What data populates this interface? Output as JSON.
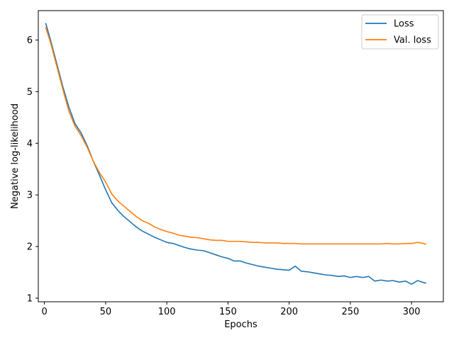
{
  "chart_data": {
    "type": "line",
    "title": "",
    "xlabel": "Epochs",
    "ylabel": "Negative log-likelihood",
    "xlim": [
      -5,
      326
    ],
    "ylim": [
      0.93,
      6.57
    ],
    "x_ticks": [
      0,
      50,
      100,
      150,
      200,
      250,
      300
    ],
    "y_ticks": [
      1,
      2,
      3,
      4,
      5,
      6
    ],
    "grid": false,
    "legend_position": "top-right",
    "series": [
      {
        "name": "Loss",
        "color": "#1f77b4",
        "points": [
          [
            1,
            6.33
          ],
          [
            5,
            6.0
          ],
          [
            10,
            5.55
          ],
          [
            15,
            5.1
          ],
          [
            20,
            4.7
          ],
          [
            25,
            4.38
          ],
          [
            30,
            4.2
          ],
          [
            35,
            3.95
          ],
          [
            40,
            3.65
          ],
          [
            45,
            3.38
          ],
          [
            50,
            3.1
          ],
          [
            55,
            2.85
          ],
          [
            60,
            2.7
          ],
          [
            65,
            2.58
          ],
          [
            70,
            2.48
          ],
          [
            75,
            2.38
          ],
          [
            80,
            2.3
          ],
          [
            85,
            2.24
          ],
          [
            90,
            2.18
          ],
          [
            95,
            2.13
          ],
          [
            100,
            2.08
          ],
          [
            105,
            2.06
          ],
          [
            110,
            2.02
          ],
          [
            115,
            1.98
          ],
          [
            120,
            1.95
          ],
          [
            125,
            1.93
          ],
          [
            130,
            1.92
          ],
          [
            135,
            1.88
          ],
          [
            140,
            1.84
          ],
          [
            145,
            1.8
          ],
          [
            150,
            1.77
          ],
          [
            155,
            1.72
          ],
          [
            160,
            1.72
          ],
          [
            165,
            1.68
          ],
          [
            170,
            1.65
          ],
          [
            175,
            1.62
          ],
          [
            180,
            1.6
          ],
          [
            185,
            1.58
          ],
          [
            190,
            1.56
          ],
          [
            195,
            1.55
          ],
          [
            200,
            1.54
          ],
          [
            205,
            1.62
          ],
          [
            210,
            1.52
          ],
          [
            215,
            1.51
          ],
          [
            220,
            1.49
          ],
          [
            225,
            1.47
          ],
          [
            230,
            1.45
          ],
          [
            235,
            1.44
          ],
          [
            240,
            1.42
          ],
          [
            245,
            1.43
          ],
          [
            250,
            1.4
          ],
          [
            255,
            1.42
          ],
          [
            260,
            1.4
          ],
          [
            265,
            1.42
          ],
          [
            270,
            1.33
          ],
          [
            275,
            1.35
          ],
          [
            280,
            1.33
          ],
          [
            285,
            1.34
          ],
          [
            290,
            1.31
          ],
          [
            295,
            1.33
          ],
          [
            300,
            1.27
          ],
          [
            305,
            1.34
          ],
          [
            310,
            1.3
          ],
          [
            312,
            1.29
          ]
        ]
      },
      {
        "name": "Val. loss",
        "color": "#ff7f0e",
        "points": [
          [
            1,
            6.25
          ],
          [
            5,
            5.95
          ],
          [
            10,
            5.5
          ],
          [
            15,
            5.05
          ],
          [
            20,
            4.62
          ],
          [
            25,
            4.33
          ],
          [
            30,
            4.15
          ],
          [
            35,
            3.92
          ],
          [
            40,
            3.65
          ],
          [
            45,
            3.43
          ],
          [
            50,
            3.25
          ],
          [
            55,
            3.02
          ],
          [
            60,
            2.88
          ],
          [
            65,
            2.78
          ],
          [
            70,
            2.68
          ],
          [
            75,
            2.58
          ],
          [
            80,
            2.5
          ],
          [
            85,
            2.45
          ],
          [
            90,
            2.38
          ],
          [
            95,
            2.33
          ],
          [
            100,
            2.29
          ],
          [
            105,
            2.26
          ],
          [
            110,
            2.22
          ],
          [
            115,
            2.2
          ],
          [
            120,
            2.18
          ],
          [
            125,
            2.17
          ],
          [
            130,
            2.15
          ],
          [
            135,
            2.13
          ],
          [
            140,
            2.12
          ],
          [
            145,
            2.12
          ],
          [
            150,
            2.1
          ],
          [
            155,
            2.1
          ],
          [
            160,
            2.1
          ],
          [
            165,
            2.09
          ],
          [
            170,
            2.08
          ],
          [
            175,
            2.08
          ],
          [
            180,
            2.07
          ],
          [
            185,
            2.07
          ],
          [
            190,
            2.07
          ],
          [
            195,
            2.06
          ],
          [
            200,
            2.06
          ],
          [
            205,
            2.06
          ],
          [
            210,
            2.05
          ],
          [
            215,
            2.05
          ],
          [
            220,
            2.05
          ],
          [
            225,
            2.05
          ],
          [
            230,
            2.05
          ],
          [
            235,
            2.05
          ],
          [
            240,
            2.05
          ],
          [
            245,
            2.05
          ],
          [
            250,
            2.05
          ],
          [
            255,
            2.05
          ],
          [
            260,
            2.05
          ],
          [
            265,
            2.05
          ],
          [
            270,
            2.05
          ],
          [
            275,
            2.05
          ],
          [
            280,
            2.06
          ],
          [
            285,
            2.05
          ],
          [
            290,
            2.05
          ],
          [
            295,
            2.06
          ],
          [
            300,
            2.06
          ],
          [
            305,
            2.08
          ],
          [
            310,
            2.06
          ],
          [
            312,
            2.04
          ]
        ]
      }
    ]
  }
}
